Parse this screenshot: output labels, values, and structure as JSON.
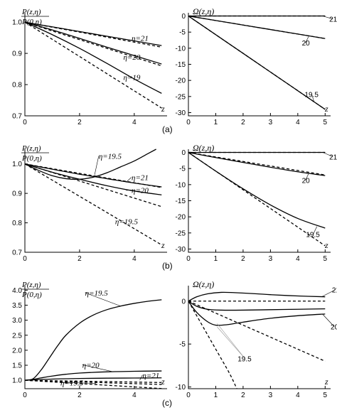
{
  "figure": {
    "panel_labels": [
      "(a)",
      "(b)",
      "(c)"
    ]
  },
  "chart_data": [
    {
      "id": "a-left",
      "row": 0,
      "col": 0,
      "type": "line",
      "ylabel_num": "P(z,η)",
      "ylabel_den": "P(0,η)",
      "xlabel": "z",
      "xlim": [
        0,
        5.2
      ],
      "ylim": [
        0.7,
        1.03
      ],
      "xticks": [
        0,
        2,
        4
      ],
      "yticks": [
        0.7,
        0.8,
        0.9,
        1.0
      ],
      "ytick_labels": [
        "0.7",
        "0.8",
        "0.9",
        "1.0"
      ],
      "series": [
        {
          "style": "solid",
          "x": [
            0,
            1,
            2,
            3,
            4,
            5
          ],
          "y": [
            1.0,
            0.985,
            0.97,
            0.955,
            0.94,
            0.925
          ]
        },
        {
          "style": "dashed",
          "x": [
            0,
            1,
            2,
            3,
            4,
            5
          ],
          "y": [
            1.0,
            0.984,
            0.968,
            0.952,
            0.936,
            0.92
          ]
        },
        {
          "style": "solid",
          "x": [
            0,
            1,
            2,
            3,
            4,
            5
          ],
          "y": [
            1.0,
            0.975,
            0.948,
            0.92,
            0.893,
            0.866
          ]
        },
        {
          "style": "dashed",
          "x": [
            0,
            1,
            2,
            3,
            4,
            5
          ],
          "y": [
            1.0,
            0.972,
            0.944,
            0.916,
            0.888,
            0.86
          ]
        },
        {
          "style": "solid",
          "x": [
            0,
            1,
            2,
            3,
            4,
            5
          ],
          "y": [
            1.0,
            0.96,
            0.916,
            0.868,
            0.818,
            0.772
          ]
        },
        {
          "style": "dashed",
          "x": [
            0,
            1,
            2,
            3,
            4,
            5
          ],
          "y": [
            1.0,
            0.945,
            0.89,
            0.835,
            0.78,
            0.725
          ]
        }
      ],
      "annotations": [
        {
          "text": "η=21",
          "x": 3.9,
          "y": 0.94
        },
        {
          "text": "η=20",
          "x": 3.6,
          "y": 0.88
        },
        {
          "text": "η=19",
          "x": 3.6,
          "y": 0.815
        }
      ]
    },
    {
      "id": "a-right",
      "row": 0,
      "col": 1,
      "type": "line",
      "ylabel": "Ω(z,η)",
      "xlabel": "z",
      "xlim": [
        0,
        5.2
      ],
      "ylim": [
        -31,
        1
      ],
      "xticks": [
        0,
        1,
        2,
        3,
        4,
        5
      ],
      "yticks": [
        0,
        -5,
        -10,
        -15,
        -20,
        -25,
        -30
      ],
      "ytick_labels": [
        "0",
        "-5",
        "-10",
        "-15",
        "-20",
        "-25",
        "-30"
      ],
      "series": [
        {
          "style": "solid",
          "x": [
            0,
            5
          ],
          "y": [
            0,
            0
          ]
        },
        {
          "style": "dashed",
          "x": [
            0,
            5
          ],
          "y": [
            0,
            0
          ]
        },
        {
          "style": "solid",
          "x": [
            0,
            1,
            2,
            3,
            4,
            5
          ],
          "y": [
            0,
            -1.4,
            -2.8,
            -4.2,
            -5.6,
            -7
          ]
        },
        {
          "style": "dashed",
          "x": [
            0,
            1,
            2,
            3,
            4,
            5
          ],
          "y": [
            0,
            -1.4,
            -2.8,
            -4.2,
            -5.6,
            -7
          ]
        },
        {
          "style": "solid",
          "x": [
            0,
            1,
            2,
            3,
            4,
            5
          ],
          "y": [
            0,
            -5.8,
            -11.6,
            -17.4,
            -23.2,
            -29
          ]
        },
        {
          "style": "dashed",
          "x": [
            0,
            1,
            2,
            3,
            4,
            5
          ],
          "y": [
            0,
            -5.8,
            -11.6,
            -17.4,
            -23.2,
            -29
          ]
        }
      ],
      "annotations": [
        {
          "text": "21",
          "x": 5.15,
          "y": -1.8,
          "leader": [
            4.95,
            -0.1
          ]
        },
        {
          "text": "20",
          "x": 4.15,
          "y": -9.2,
          "leader": [
            4.4,
            -6.3
          ]
        },
        {
          "text": "19.5",
          "x": 4.25,
          "y": -25.2,
          "leader": [
            4.6,
            -26.8
          ]
        }
      ]
    },
    {
      "id": "b-left",
      "row": 1,
      "col": 0,
      "type": "line",
      "ylabel_num": "P(z,η)",
      "ylabel_den": "P(0,η)",
      "xlabel": "z",
      "xlim": [
        0,
        5.2
      ],
      "ylim": [
        0.7,
        1.05
      ],
      "xticks": [
        0,
        2,
        4
      ],
      "yticks": [
        0.7,
        0.8,
        0.9,
        1.0
      ],
      "ytick_labels": [
        "0.7",
        "0.8",
        "0.9",
        "1.0"
      ],
      "series": [
        {
          "style": "solid",
          "x": [
            0,
            0.5,
            1,
            1.5,
            2,
            2.5,
            3,
            3.5,
            4,
            4.5,
            4.8
          ],
          "y": [
            1.0,
            0.978,
            0.96,
            0.95,
            0.948,
            0.955,
            0.97,
            0.99,
            1.01,
            1.035,
            1.05
          ]
        },
        {
          "style": "solid",
          "x": [
            0,
            1,
            2,
            3,
            4,
            5
          ],
          "y": [
            1.0,
            0.982,
            0.965,
            0.95,
            0.935,
            0.922
          ]
        },
        {
          "style": "dashed",
          "x": [
            0,
            1,
            2,
            3,
            4,
            5
          ],
          "y": [
            1.0,
            0.984,
            0.968,
            0.952,
            0.936,
            0.92
          ]
        },
        {
          "style": "solid",
          "x": [
            0,
            1,
            2,
            3,
            4,
            5
          ],
          "y": [
            1.0,
            0.972,
            0.948,
            0.926,
            0.908,
            0.895
          ]
        },
        {
          "style": "dashed",
          "x": [
            0,
            1,
            2,
            3,
            4,
            5
          ],
          "y": [
            1.0,
            0.971,
            0.942,
            0.913,
            0.884,
            0.855
          ]
        },
        {
          "style": "dashed",
          "x": [
            0,
            1,
            2,
            3,
            4,
            5
          ],
          "y": [
            1.0,
            0.945,
            0.89,
            0.835,
            0.78,
            0.725
          ]
        }
      ],
      "annotations": [
        {
          "text": "η=19.5",
          "x": 2.7,
          "y": 1.018,
          "leader": [
            2.55,
            0.963
          ]
        },
        {
          "text": "η=21",
          "x": 3.9,
          "y": 0.945,
          "leader": [
            3.7,
            0.938
          ]
        },
        {
          "text": "η=20",
          "x": 3.9,
          "y": 0.902,
          "leader": [
            3.7,
            0.91
          ]
        },
        {
          "text": "η=19.5",
          "x": 3.3,
          "y": 0.795
        }
      ]
    },
    {
      "id": "b-right",
      "row": 1,
      "col": 1,
      "type": "line",
      "ylabel": "Ω(z,η)",
      "xlabel": "z",
      "xlim": [
        0,
        5.2
      ],
      "ylim": [
        -31,
        1
      ],
      "xticks": [
        0,
        1,
        2,
        3,
        4,
        5
      ],
      "yticks": [
        0,
        -5,
        -10,
        -15,
        -20,
        -25,
        -30
      ],
      "ytick_labels": [
        "0",
        "-5",
        "-10",
        "-15",
        "-20",
        "-25",
        "-30"
      ],
      "series": [
        {
          "style": "solid",
          "x": [
            0,
            5
          ],
          "y": [
            0,
            0
          ]
        },
        {
          "style": "dashed",
          "x": [
            0,
            5
          ],
          "y": [
            0,
            0
          ]
        },
        {
          "style": "solid",
          "x": [
            0,
            1,
            2,
            3,
            4,
            5
          ],
          "y": [
            0,
            -1.6,
            -3.1,
            -4.6,
            -6.0,
            -7.2
          ]
        },
        {
          "style": "dashed",
          "x": [
            0,
            1,
            2,
            3,
            4,
            5
          ],
          "y": [
            0,
            -1.4,
            -2.8,
            -4.2,
            -5.6,
            -7
          ]
        },
        {
          "style": "solid",
          "x": [
            0,
            1,
            2,
            3,
            4,
            5
          ],
          "y": [
            0,
            -5.8,
            -11.3,
            -16.3,
            -20.5,
            -23.5
          ]
        },
        {
          "style": "dashed",
          "x": [
            0,
            1,
            2,
            3,
            4,
            5
          ],
          "y": [
            0,
            -5.8,
            -11.6,
            -17.4,
            -23.2,
            -29
          ]
        }
      ],
      "annotations": [
        {
          "text": "21",
          "x": 5.15,
          "y": -2.2,
          "leader": [
            4.95,
            -0.1
          ]
        },
        {
          "text": "20",
          "x": 4.15,
          "y": -9.5,
          "leader": [
            4.4,
            -6.5
          ]
        },
        {
          "text": "19.5",
          "x": 4.3,
          "y": -26.3,
          "leader": [
            4.7,
            -23.0
          ]
        }
      ]
    },
    {
      "id": "c-left",
      "row": 2,
      "col": 0,
      "type": "line",
      "ylabel_num": "P(z,η)",
      "ylabel_den": "P(0,η)",
      "xlabel": "z",
      "xlim": [
        0,
        5.2
      ],
      "ylim": [
        0.72,
        4.15
      ],
      "xticks": [
        0,
        2,
        4
      ],
      "yticks": [
        1.0,
        1.5,
        2.0,
        2.5,
        3.0,
        3.5,
        4.0
      ],
      "ytick_labels": [
        "1.0",
        "1.5",
        "2.0",
        "2.5",
        "3.0",
        "3.5",
        "4.0"
      ],
      "series": [
        {
          "style": "solid",
          "x": [
            0,
            0.3,
            0.6,
            0.9,
            1.2,
            1.5,
            2,
            2.5,
            3,
            3.5,
            4,
            4.5,
            5
          ],
          "y": [
            1.0,
            1.05,
            1.35,
            1.75,
            2.15,
            2.5,
            2.9,
            3.17,
            3.35,
            3.47,
            3.56,
            3.63,
            3.68
          ]
        },
        {
          "style": "solid",
          "x": [
            0,
            0.3,
            0.6,
            1,
            1.5,
            2,
            3,
            4,
            5
          ],
          "y": [
            1.0,
            1.03,
            1.08,
            1.14,
            1.2,
            1.24,
            1.28,
            1.3,
            1.31
          ]
        },
        {
          "style": "solid",
          "x": [
            0,
            1,
            2,
            3,
            4,
            5
          ],
          "y": [
            1.0,
            1.04,
            1.06,
            1.07,
            1.075,
            1.08
          ]
        },
        {
          "style": "dashed",
          "x": [
            0,
            1,
            2,
            3,
            4,
            5
          ],
          "y": [
            1.0,
            0.985,
            0.97,
            0.955,
            0.94,
            0.925
          ]
        },
        {
          "style": "dashed",
          "x": [
            0,
            1,
            2,
            3,
            4,
            5
          ],
          "y": [
            1.0,
            0.972,
            0.944,
            0.916,
            0.888,
            0.86
          ]
        },
        {
          "style": "dashed",
          "x": [
            0,
            1,
            2,
            3,
            4,
            5
          ],
          "y": [
            1.0,
            0.945,
            0.89,
            0.835,
            0.78,
            0.725
          ]
        }
      ],
      "annotations": [
        {
          "text": "η=19.5",
          "x": 2.2,
          "y": 3.82,
          "leader": [
            3.5,
            3.47
          ]
        },
        {
          "text": "η=20",
          "x": 2.1,
          "y": 1.42,
          "leader": [
            3.2,
            1.29
          ]
        },
        {
          "text": "η=21",
          "x": 4.3,
          "y": 1.08,
          "leader": [
            4.2,
            1.0
          ]
        },
        {
          "text": "η=19.5",
          "x": 1.3,
          "y": 0.83,
          "leader": [
            2.6,
            0.9
          ]
        }
      ]
    },
    {
      "id": "c-right",
      "row": 2,
      "col": 1,
      "type": "line",
      "ylabel": "Ω(z,η)",
      "xlabel": "z",
      "xlim": [
        0,
        5.2
      ],
      "ylim": [
        -10.2,
        1.8
      ],
      "xticks": [
        0,
        1,
        2,
        3,
        4,
        5
      ],
      "yticks": [
        0,
        -5,
        -10
      ],
      "ytick_labels": [
        "0",
        "-5",
        "-10"
      ],
      "series": [
        {
          "style": "solid",
          "x": [
            0,
            0.3,
            0.7,
            1.2,
            1.7,
            2.5,
            3,
            4,
            5
          ],
          "y": [
            0,
            0.5,
            0.85,
            1.02,
            0.98,
            0.85,
            0.75,
            0.6,
            0.5
          ]
        },
        {
          "style": "dashed",
          "x": [
            0,
            5
          ],
          "y": [
            0,
            0
          ]
        },
        {
          "style": "solid",
          "x": [
            0,
            0.3,
            0.7,
            1.2,
            2,
            3,
            4,
            5
          ],
          "y": [
            0,
            -0.6,
            -0.95,
            -1.05,
            -1.05,
            -1.0,
            -0.95,
            -0.9
          ]
        },
        {
          "style": "dashed",
          "x": [
            0,
            1,
            2,
            3,
            4,
            5
          ],
          "y": [
            0,
            -1.4,
            -2.8,
            -4.2,
            -5.6,
            -7
          ]
        },
        {
          "style": "solid",
          "x": [
            0,
            0.3,
            0.7,
            1.0,
            1.4,
            2,
            3,
            4,
            5
          ],
          "y": [
            0,
            -1.3,
            -2.4,
            -2.8,
            -2.75,
            -2.45,
            -2.0,
            -1.7,
            -1.5
          ]
        },
        {
          "style": "dashed",
          "x": [
            0,
            0.5,
            1,
            1.5,
            1.77
          ],
          "y": [
            0,
            -2.8,
            -5.6,
            -8.4,
            -10.2
          ]
        }
      ],
      "annotations": [
        {
          "text": "21",
          "x": 5.25,
          "y": 1.0,
          "leader": [
            4.9,
            0.55
          ]
        },
        {
          "text": "20",
          "x": 5.2,
          "y": -3.3,
          "leader": [
            4.9,
            -1.5
          ]
        },
        {
          "text": "19.5",
          "x": 1.8,
          "y": -7.0,
          "leader": [
            1.05,
            -2.6
          ],
          "leader2": [
            1.05,
            -3.0
          ],
          "gray": true
        }
      ]
    }
  ]
}
